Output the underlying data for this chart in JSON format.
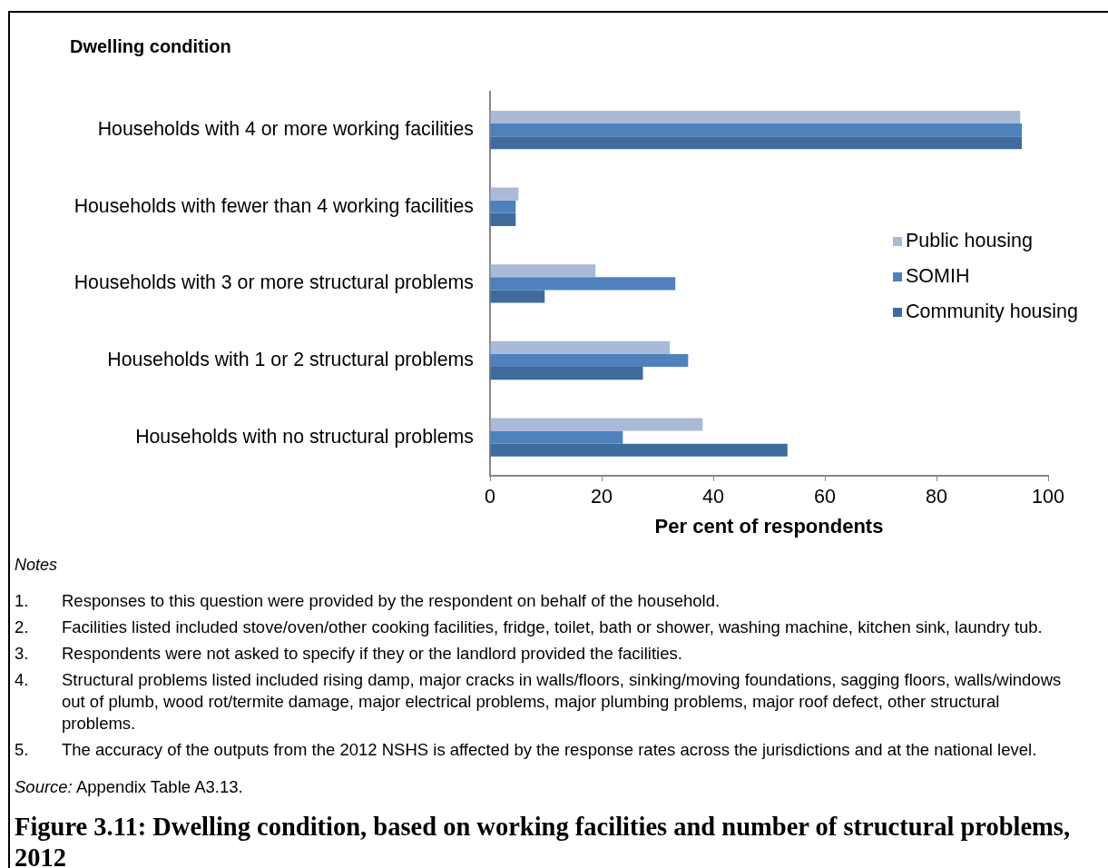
{
  "chart_data": {
    "type": "bar",
    "orientation": "horizontal",
    "title": "Dwelling condition",
    "xlabel": "Per cent of respondents",
    "categories": [
      "Households with 4 or more working facilities",
      "Households with fewer than 4 working facilities",
      "Households with 3 or more structural problems",
      "Households with 1 or 2 structural problems",
      "Households with no structural problems"
    ],
    "series": [
      {
        "name": "Public housing",
        "color": "#a9b9d7",
        "values": [
          95.0,
          5.1,
          18.9,
          32.2,
          38.1
        ]
      },
      {
        "name": "SOMIH",
        "color": "#4f81bd",
        "values": [
          95.3,
          4.6,
          33.2,
          35.5,
          23.8
        ]
      },
      {
        "name": "Community housing",
        "color": "#3f6b9d",
        "values": [
          95.3,
          4.6,
          9.8,
          27.4,
          53.3
        ]
      }
    ],
    "xlim": [
      0,
      100
    ],
    "xticks": [
      0,
      20,
      40,
      60,
      80,
      100
    ],
    "grid": false,
    "legend": "right",
    "annotations": [
      "Notes",
      "1. Responses to this question were provided by the respondent on behalf of the household.",
      "2. Facilities listed included stove/oven/other cooking facilities, fridge, toilet, bath or shower, washing machine, kitchen sink, laundry tub.",
      "3. Respondents were not asked to specify if they or the landlord provided the facilities.",
      "4. Structural problems listed included rising damp, major cracks in walls/floors, sinking/moving foundations, sagging floors, walls/windows out of plumb, wood rot/termite damage, major electrical problems, major plumbing problems, major roof defect, other structural problems.",
      "5. The accuracy of the outputs from the 2012 NSHS is affected by the response rates across the jurisdictions and at the national level.",
      "Source: Appendix Table A3.13.",
      "Figure 3.11: Dwelling condition, based on working facilities and number of structural problems, 2012"
    ]
  }
}
